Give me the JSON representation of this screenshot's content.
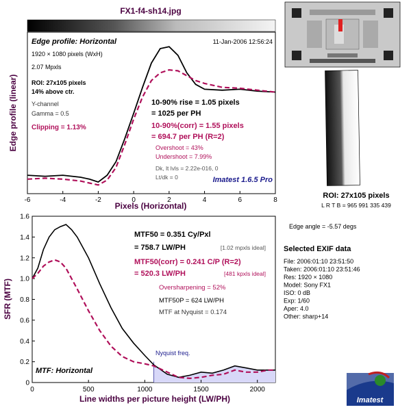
{
  "header": {
    "filename": "FX1-f4-sh14.jpg"
  },
  "edge_panel": {
    "title": "Edge profile: Horizontal",
    "timestamp": "11-Jan-2006 12:56:24",
    "dims": "1920 × 1080 pixels (WxH)",
    "mpxls": "2.07 Mpxls",
    "roi_line1": "ROI: 27x105 pixels",
    "roi_line2": "14% above ctr.",
    "channel": "Y-channel",
    "gamma": "Gamma = 0.5",
    "clipping": "Clipping =  1.13%",
    "rise1": "10-90% rise = 1.05 pixels",
    "rise2": "= 1025 per PH",
    "corr1": "10-90%(corr) = 1.55 pixels",
    "corr2": "= 694.7 per PH  (R=2)",
    "overshoot": "Overshoot = 43%",
    "undershoot": "Undershoot = 7.99%",
    "dk_line": "Dk, lt lvls = 2.22e-016, 0",
    "lt_line": "Lt/dk = 0",
    "version": "Imatest 1.6.5 Pro"
  },
  "mtf_panel": {
    "title": "MTF: Horizontal",
    "mtf50_1": "MTF50 = 0.351 Cy/Pxl",
    "mtf50_2": "= 758.7 LW/PH",
    "mtf50_ideal": "[1.02 mpxls ideal]",
    "corr_1": "MTF50(corr) = 0.241 C/P  (R=2)",
    "corr_2": "= 520.3 LW/PH",
    "corr_ideal": "[481 kpxls ideal]",
    "oversharp": "Oversharpening = 52%",
    "mtf50p": "MTF50P = 624 LW/PH",
    "nyq_mtf": "MTF at Nyquist = 0.174",
    "nyquist_label": "Nyquist freq."
  },
  "right_panel": {
    "roi_title": "ROI: 27x105 pixels",
    "lr_tb": "L R  T B = 965 991  335 439",
    "edge_angle": "Edge angle = -5.57 degs",
    "exif_title": "Selected EXIF data",
    "exif": [
      "File:  2006:01:10 23:51:50",
      "Taken: 2006:01:10 23:51:46",
      "Res:   1920 × 1080",
      "Model: Sony FX1",
      "ISO:   0 dB",
      "Exp:   1/60",
      "Aper:  4.0",
      "Other: sharp+14"
    ],
    "logo_text": "Imatest"
  },
  "colors": {
    "raw": "#000000",
    "corrected": "#b0105a",
    "label_purple": "#4a0040",
    "fill": "#d8d8f8"
  },
  "chart_data": [
    {
      "type": "line",
      "title": "Edge profile: Horizontal",
      "xlabel": "Pixels (Horizontal)",
      "ylabel": "Edge profile (linear)",
      "xlim": [
        -6,
        8
      ],
      "xticks": [
        -6,
        -4,
        -2,
        0,
        2,
        4,
        6,
        8
      ],
      "grid": false,
      "series": [
        {
          "x": [
            -6,
            -5,
            -4,
            -3,
            -2.5,
            -2,
            -1.5,
            -1,
            -0.5,
            0,
            0.5,
            1,
            1.5,
            2,
            2.5,
            3,
            3.5,
            4,
            5,
            6,
            7,
            8
          ],
          "values": [
            0.14,
            0.13,
            0.14,
            0.12,
            0.1,
            0.07,
            0.14,
            0.28,
            0.52,
            0.78,
            1.05,
            1.3,
            1.45,
            1.47,
            1.38,
            1.2,
            1.08,
            1.03,
            1.02,
            1.03,
            1.01,
            1.0
          ]
        },
        {
          "x": [
            -6,
            -5,
            -4,
            -3,
            -2.5,
            -2,
            -1.5,
            -1,
            -0.5,
            0,
            0.5,
            1,
            1.5,
            2,
            2.5,
            3,
            3.5,
            4,
            5,
            6,
            7,
            8
          ],
          "values": [
            0.1,
            0.11,
            0.1,
            0.08,
            0.06,
            0.04,
            0.09,
            0.22,
            0.46,
            0.72,
            0.95,
            1.12,
            1.2,
            1.23,
            1.22,
            1.17,
            1.12,
            1.09,
            1.05,
            1.04,
            1.02,
            1.0
          ]
        }
      ]
    },
    {
      "type": "line",
      "title": "MTF: Horizontal",
      "xlabel": "Line widths per picture height (LW/PH)",
      "ylabel": "SFR (MTF)",
      "xlim": [
        0,
        2160
      ],
      "ylim": [
        0,
        1.6
      ],
      "xticks": [
        0,
        500,
        1000,
        1500,
        2000
      ],
      "yticks": [
        0,
        0.2,
        0.4,
        0.6,
        0.8,
        1.0,
        1.2,
        1.4,
        1.6
      ],
      "nyquist": 1080,
      "grid": false,
      "series": [
        {
          "x": [
            0,
            50,
            100,
            150,
            200,
            250,
            300,
            350,
            400,
            500,
            600,
            700,
            800,
            900,
            1000,
            1080,
            1200,
            1300,
            1400,
            1500,
            1600,
            1700,
            1800,
            1900,
            2000,
            2100,
            2160
          ],
          "values": [
            1.0,
            1.1,
            1.28,
            1.4,
            1.47,
            1.5,
            1.52,
            1.47,
            1.4,
            1.2,
            0.95,
            0.72,
            0.52,
            0.38,
            0.26,
            0.17,
            0.08,
            0.05,
            0.07,
            0.1,
            0.09,
            0.12,
            0.16,
            0.14,
            0.12,
            0.12,
            0.12
          ]
        },
        {
          "x": [
            0,
            50,
            100,
            150,
            200,
            250,
            300,
            350,
            400,
            500,
            600,
            700,
            800,
            900,
            1000,
            1080,
            1200,
            1300,
            1400,
            1500,
            1600,
            1700,
            1800,
            1900,
            2000,
            2100,
            2160
          ],
          "values": [
            1.0,
            1.05,
            1.12,
            1.16,
            1.18,
            1.16,
            1.1,
            1.0,
            0.9,
            0.69,
            0.5,
            0.35,
            0.25,
            0.2,
            0.18,
            0.16,
            0.1,
            0.05,
            0.04,
            0.05,
            0.07,
            0.08,
            0.12,
            0.1,
            0.1,
            0.12,
            0.12
          ]
        }
      ]
    }
  ]
}
